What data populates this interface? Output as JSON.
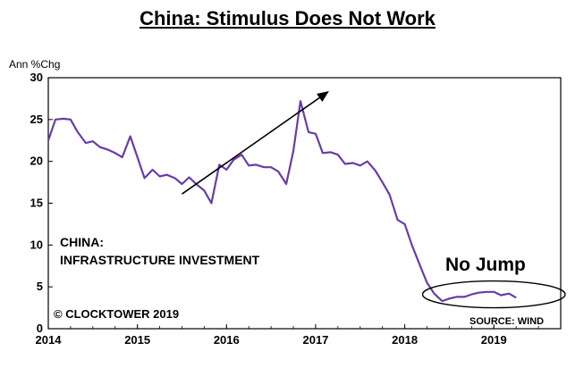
{
  "title": "China: Stimulus Does Not Work",
  "chart_data": {
    "type": "line",
    "title": "China: Stimulus Does Not Work",
    "ylabel": "Ann %Chg",
    "xlabel": "",
    "ylim": [
      0,
      30
    ],
    "xlim": [
      2014,
      2019.75
    ],
    "yticks": [
      0,
      5,
      10,
      15,
      20,
      25,
      30
    ],
    "xticks": [
      2014,
      2015,
      2016,
      2017,
      2018,
      2019
    ],
    "grid": false,
    "line_color": "#6a3ba8",
    "series": [
      {
        "name": "",
        "x": [
          2014.0,
          2014.08,
          2014.17,
          2014.25,
          2014.33,
          2014.42,
          2014.5,
          2014.58,
          2014.67,
          2014.75,
          2014.83,
          2014.92,
          2015.0,
          2015.08,
          2015.17,
          2015.25,
          2015.33,
          2015.42,
          2015.5,
          2015.58,
          2015.67,
          2015.75,
          2015.83,
          2015.92,
          2016.0,
          2016.08,
          2016.17,
          2016.25,
          2016.33,
          2016.42,
          2016.5,
          2016.58,
          2016.67,
          2016.75,
          2016.83,
          2016.92,
          2017.0,
          2017.08,
          2017.17,
          2017.25,
          2017.33,
          2017.42,
          2017.5,
          2017.58,
          2017.67,
          2017.75,
          2017.83,
          2017.92,
          2018.0,
          2018.08,
          2018.17,
          2018.25,
          2018.33,
          2018.42,
          2018.5,
          2018.58,
          2018.67,
          2018.75,
          2018.83,
          2018.92,
          2019.0,
          2019.08,
          2019.17,
          2019.25
        ],
        "values": [
          22.5,
          25.0,
          25.1,
          25.0,
          23.5,
          22.2,
          22.4,
          21.7,
          21.4,
          21.0,
          20.5,
          23.0,
          20.5,
          18.0,
          19.0,
          18.2,
          18.4,
          18.0,
          17.3,
          18.1,
          17.2,
          16.5,
          15.0,
          19.6,
          19.0,
          20.2,
          20.8,
          19.5,
          19.6,
          19.3,
          19.3,
          18.8,
          17.3,
          21.2,
          27.2,
          23.5,
          23.3,
          21.0,
          21.1,
          20.8,
          19.7,
          19.8,
          19.5,
          20.0,
          18.9,
          17.5,
          16.0,
          13.0,
          12.5,
          10.0,
          7.6,
          5.5,
          4.2,
          3.3,
          3.6,
          3.8,
          3.8,
          4.1,
          4.3,
          4.4,
          4.4,
          4.0,
          4.2,
          3.7
        ]
      }
    ],
    "annotations": {
      "series_label_line1": "CHINA:",
      "series_label_line2": "INFRASTRUCTURE INVESTMENT",
      "highlight": "No Jump",
      "highlight_color": "#e0141e",
      "copyright": "© CLOCKTOWER 2019",
      "source": "SOURCE: WIND",
      "arrow": {
        "from": [
          2015.5,
          16.1
        ],
        "to": [
          2017.15,
          28.4
        ]
      },
      "ellipse": {
        "center": [
          2019.0,
          4.1
        ],
        "rx_years": 0.8,
        "ry_units": 1.6
      }
    }
  }
}
